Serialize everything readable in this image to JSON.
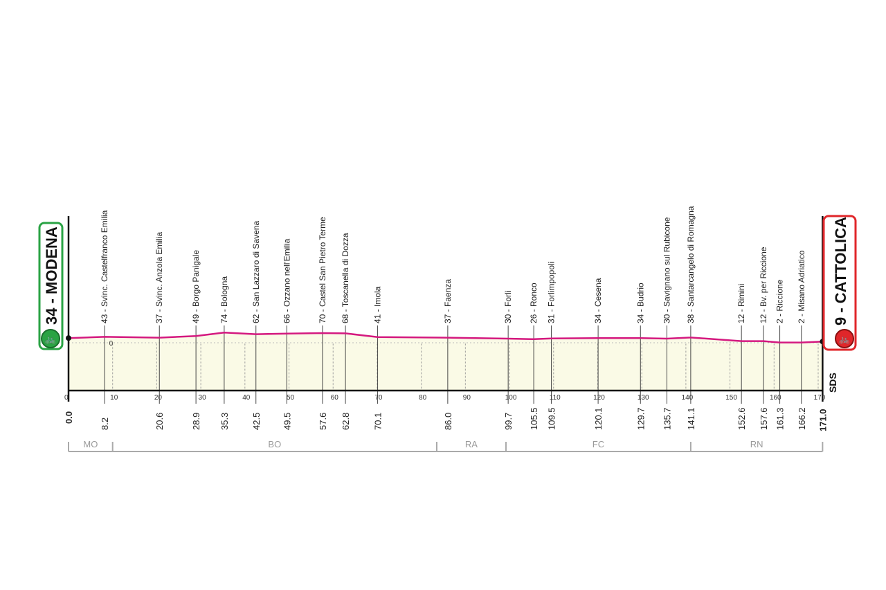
{
  "chart_data": {
    "type": "area",
    "xlim": [
      0,
      171
    ],
    "x_ticks": [
      0,
      10,
      20,
      30,
      40,
      50,
      60,
      70,
      80,
      90,
      100,
      110,
      120,
      130,
      140,
      150,
      160,
      170
    ],
    "zero_label": "0",
    "line_color": "#d4187f",
    "fill_color": "#fafae6",
    "start": {
      "label": "34 - MODENA",
      "km": "0.0",
      "elevation": 34,
      "color": "#2aa344"
    },
    "finish": {
      "label": "9 - CATTOLICA",
      "km": "171.0",
      "elevation": 9,
      "color": "#e0262a"
    },
    "waypoints": [
      {
        "label": "43 - Svinc. Castelfranco Emilia",
        "km": 8.2,
        "km_label": "8.2",
        "elevation": 43
      },
      {
        "label": "37 - Svinc. Anzola Emilia",
        "km": 20.6,
        "km_label": "20.6",
        "elevation": 37
      },
      {
        "label": "49 - Borgo Panigale",
        "km": 28.9,
        "km_label": "28.9",
        "elevation": 49
      },
      {
        "label": "74 - Bologna",
        "km": 35.3,
        "km_label": "35.3",
        "elevation": 74
      },
      {
        "label": "62 - San Lazzaro di Savena",
        "km": 42.5,
        "km_label": "42.5",
        "elevation": 62
      },
      {
        "label": "66 - Ozzano nell'Emilia",
        "km": 49.5,
        "km_label": "49.5",
        "elevation": 66
      },
      {
        "label": "70 - Castel San Pietro Terme",
        "km": 57.6,
        "km_label": "57.6",
        "elevation": 70
      },
      {
        "label": "68 - Toscanella di Dozza",
        "km": 62.8,
        "km_label": "62.8",
        "elevation": 68
      },
      {
        "label": "41 - Imola",
        "km": 70.1,
        "km_label": "70.1",
        "elevation": 41
      },
      {
        "label": "37 - Faenza",
        "km": 86.0,
        "km_label": "86.0",
        "elevation": 37
      },
      {
        "label": "30 - Forlì",
        "km": 99.7,
        "km_label": "99.7",
        "elevation": 30
      },
      {
        "label": "26 - Ronco",
        "km": 105.5,
        "km_label": "105.5",
        "elevation": 26
      },
      {
        "label": "31 - Forlimpopoli",
        "km": 109.5,
        "km_label": "109.5",
        "elevation": 31
      },
      {
        "label": "34 - Cesena",
        "km": 120.1,
        "km_label": "120.1",
        "elevation": 34
      },
      {
        "label": "34 - Budrio",
        "km": 129.7,
        "km_label": "129.7",
        "elevation": 34
      },
      {
        "label": "30 - Savignano sul Rubicone",
        "km": 135.7,
        "km_label": "135.7",
        "elevation": 30
      },
      {
        "label": "38 - Santarcangelo di Romagna",
        "km": 141.1,
        "km_label": "141.1",
        "elevation": 38
      },
      {
        "label": "12 - Rimini",
        "km": 152.6,
        "km_label": "152.6",
        "elevation": 12
      },
      {
        "label": "12 - Bv. per Riccione",
        "km": 157.6,
        "km_label": "157.6",
        "elevation": 12
      },
      {
        "label": "2 - Riccione",
        "km": 161.3,
        "km_label": "161.3",
        "elevation": 2
      },
      {
        "label": "2 - Misano Adriatico",
        "km": 166.2,
        "km_label": "166.2",
        "elevation": 2
      }
    ],
    "provinces": [
      {
        "label": "MO",
        "from": 0,
        "to": 10
      },
      {
        "label": "BO",
        "from": 10,
        "to": 83.5
      },
      {
        "label": "RA",
        "from": 83.5,
        "to": 99.2
      },
      {
        "label": "FC",
        "from": 99.2,
        "to": 141.1
      },
      {
        "label": "RN",
        "from": 141.1,
        "to": 171
      }
    ],
    "brand": "SDS"
  }
}
